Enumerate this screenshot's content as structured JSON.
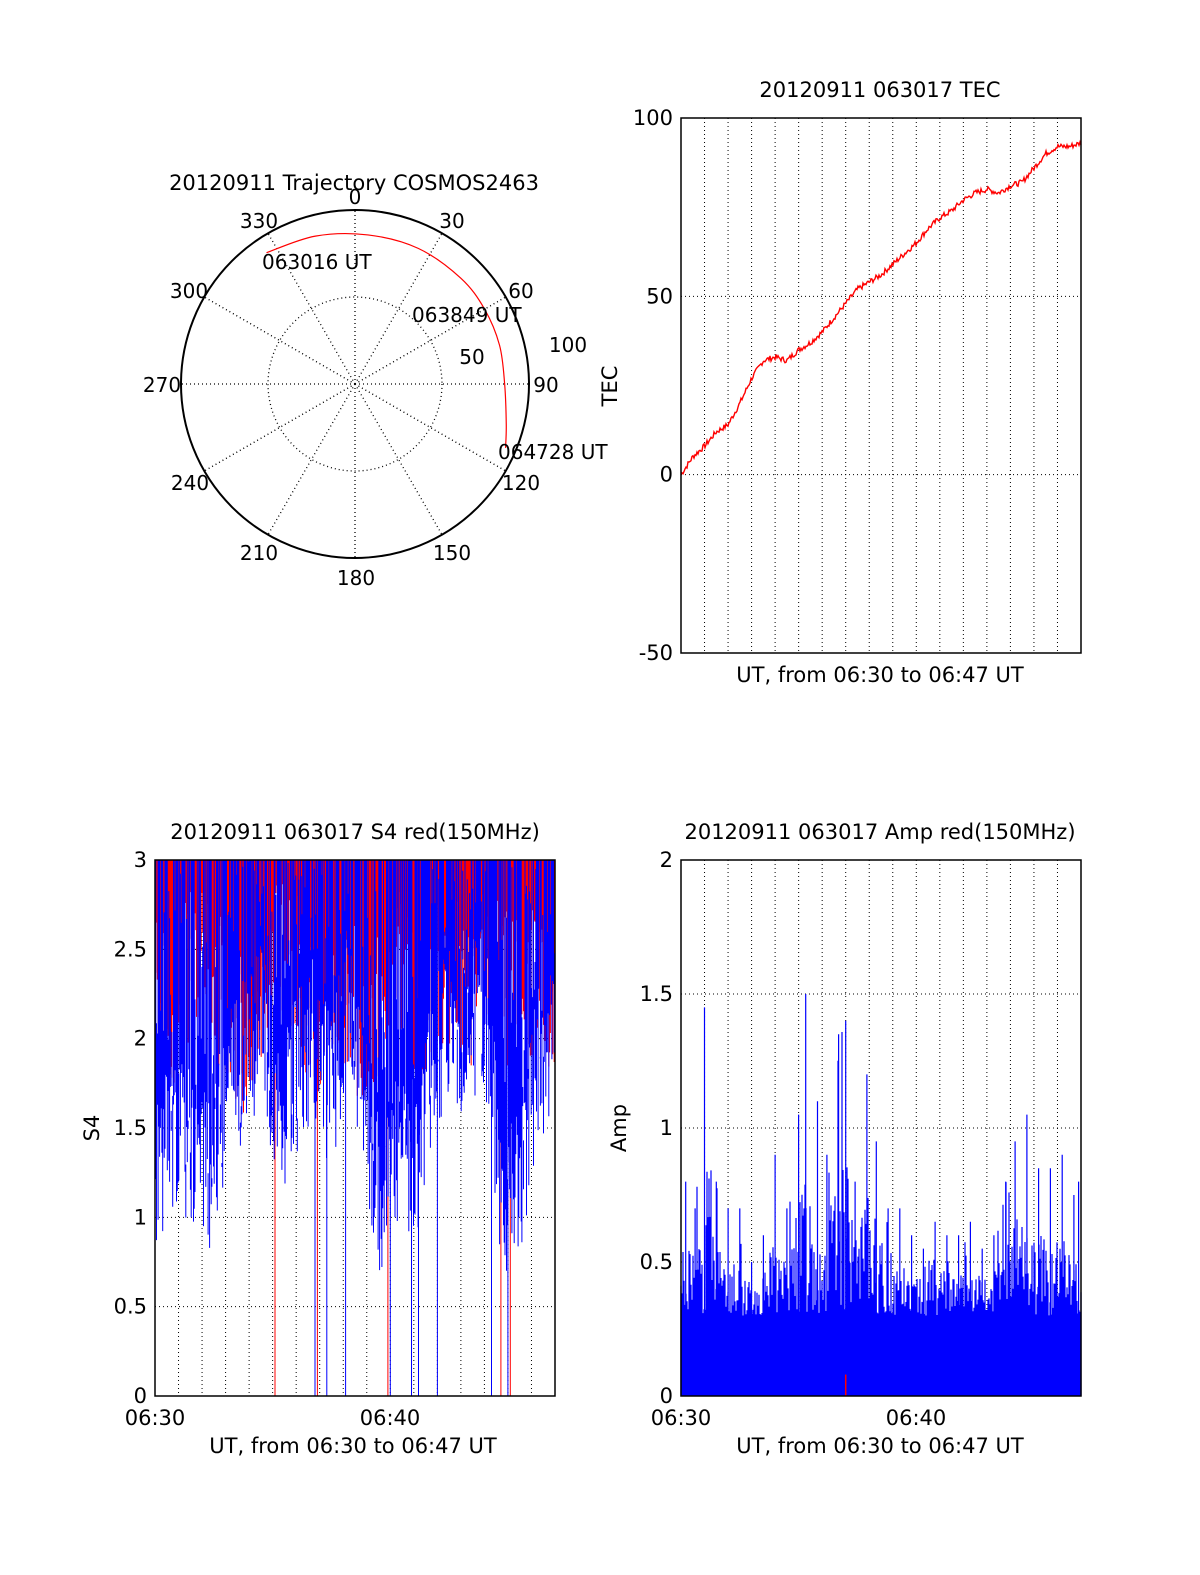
{
  "chart_data": [
    {
      "type": "polar",
      "title": "20120911 Trajectory COSMOS2463",
      "angle_labels": [
        "0",
        "30",
        "60",
        "90",
        "120",
        "150",
        "180",
        "210",
        "240",
        "270",
        "300",
        "330"
      ],
      "radial_labels": [
        "50",
        "100"
      ],
      "rlim": [
        0,
        100
      ],
      "trajectory": {
        "color": "#ff0000",
        "points": [
          {
            "azimuth": 326,
            "zenith_angle": 91
          },
          {
            "azimuth": 345,
            "zenith_angle": 88
          },
          {
            "azimuth": 5,
            "zenith_angle": 86
          },
          {
            "azimuth": 25,
            "zenith_angle": 86
          },
          {
            "azimuth": 45,
            "zenith_angle": 86
          },
          {
            "azimuth": 60,
            "zenith_angle": 86
          },
          {
            "azimuth": 75,
            "zenith_angle": 86
          },
          {
            "azimuth": 90,
            "zenith_angle": 86
          },
          {
            "azimuth": 105,
            "zenith_angle": 90
          },
          {
            "azimuth": 113,
            "zenith_angle": 94
          }
        ],
        "point_labels": [
          "063016 UT",
          "063849 UT",
          "064728 UT"
        ]
      }
    },
    {
      "type": "line",
      "title": "20120911 063017 TEC",
      "xlabel": "UT, from 06:30 to 06:47 UT",
      "ylabel": "TEC",
      "ylim": [
        -50,
        100
      ],
      "yticks": [
        "-50",
        "0",
        "50",
        "100"
      ],
      "xlim_minutes": [
        0,
        17
      ],
      "grid": true,
      "series": [
        {
          "color": "#ff0000",
          "x_minutes": [
            0,
            0.5,
            1,
            1.5,
            2,
            2.5,
            3,
            3.5,
            4,
            4.5,
            5,
            5.5,
            6,
            6.5,
            7,
            7.5,
            8,
            8.5,
            9,
            9.5,
            10,
            10.5,
            11,
            11.5,
            12,
            12.5,
            13,
            13.5,
            14,
            14.5,
            15,
            15.5,
            16,
            16.5,
            17
          ],
          "values": [
            0,
            5,
            8,
            12,
            14,
            20,
            27,
            32,
            33,
            32,
            35,
            37,
            40,
            44,
            48,
            52,
            54,
            56,
            59,
            62,
            65,
            69,
            72,
            74,
            77,
            79,
            80,
            79,
            81,
            82,
            86,
            90,
            92,
            92,
            93
          ]
        }
      ]
    },
    {
      "type": "bar",
      "title": "20120911 063017 S4 red(150MHz)",
      "xlabel": "UT, from 06:30 to 06:47 UT",
      "ylabel": "S4",
      "ylim": [
        0,
        3
      ],
      "yticks": [
        "0",
        "0.5",
        "1",
        "1.5",
        "2",
        "2.5",
        "3"
      ],
      "xticks": [
        "06:30",
        "06:40"
      ],
      "xlim_minutes": [
        0,
        17
      ],
      "grid": true,
      "series": [
        {
          "name": "red",
          "color": "#ff0000",
          "x_minutes": [
            0.2,
            0.9,
            1.6,
            2.3,
            3.1,
            3.8,
            4.6,
            5.3,
            6.0,
            6.7,
            7.5,
            8.2,
            8.9,
            9.6,
            10.4,
            11.1,
            11.8,
            12.6,
            13.3,
            14.0,
            14.7,
            15.5,
            16.2,
            16.9
          ],
          "values": [
            2.3,
            2.1,
            2.5,
            2.4,
            2.2,
            2.0,
            2.3,
            2.6,
            2.4,
            2.1,
            2.2,
            2.3,
            2.0,
            2.2,
            2.4,
            2.1,
            2.3,
            2.4,
            2.2,
            2.5,
            2.3,
            2.2,
            2.4,
            2.2
          ],
          "dropouts_minutes": [
            5.1,
            6.9,
            9.9,
            14.7,
            15.1
          ]
        },
        {
          "name": "blue",
          "color": "#0000ff",
          "x_minutes": [
            0.2,
            0.9,
            1.6,
            2.3,
            3.1,
            3.8,
            4.6,
            5.3,
            6.0,
            6.7,
            7.5,
            8.2,
            8.9,
            9.6,
            10.4,
            11.1,
            11.8,
            12.6,
            13.3,
            14.0,
            14.7,
            15.5,
            16.2,
            16.9
          ],
          "values": [
            1.3,
            1.5,
            1.4,
            1.2,
            1.7,
            1.9,
            2.1,
            1.5,
            1.8,
            2.0,
            1.7,
            2.2,
            1.6,
            1.1,
            1.4,
            1.3,
            1.9,
            2.1,
            2.0,
            2.2,
            1.1,
            1.2,
            1.8,
            2.0
          ],
          "dropouts_minutes": [
            6.8,
            7.3,
            8.1,
            10.0,
            10.9,
            11.2,
            12.0,
            14.3,
            15.0
          ]
        }
      ]
    },
    {
      "type": "bar",
      "title": "20120911 063017 Amp red(150MHz)",
      "xlabel": "UT, from 06:30 to 06:47 UT",
      "ylabel": "Amp",
      "ylim": [
        0,
        2
      ],
      "yticks": [
        "0",
        "0.5",
        "1",
        "1.5",
        "2"
      ],
      "xticks": [
        "06:30",
        "06:40"
      ],
      "xlim_minutes": [
        0,
        17
      ],
      "grid": true,
      "series": [
        {
          "name": "blue",
          "color": "#0000ff",
          "x_minutes": [
            0.2,
            0.6,
            1.0,
            1.5,
            2.0,
            2.5,
            3.0,
            3.5,
            4.0,
            4.5,
            5.0,
            5.3,
            5.8,
            6.2,
            6.7,
            7.0,
            7.4,
            7.9,
            8.3,
            8.8,
            9.3,
            9.8,
            10.3,
            10.8,
            11.3,
            11.8,
            12.3,
            12.8,
            13.3,
            13.8,
            14.2,
            14.7,
            15.2,
            15.7,
            16.2,
            16.7,
            16.9
          ],
          "values": [
            0.8,
            0.7,
            1.45,
            0.8,
            0.7,
            0.7,
            0.5,
            0.6,
            0.9,
            0.7,
            1.05,
            1.5,
            1.1,
            0.9,
            1.35,
            1.4,
            0.8,
            1.2,
            0.95,
            0.7,
            0.7,
            0.6,
            0.55,
            0.65,
            0.6,
            0.6,
            0.65,
            0.55,
            0.6,
            0.8,
            0.95,
            1.05,
            0.85,
            0.85,
            0.9,
            0.75,
            0.8
          ],
          "floor": 0.3
        },
        {
          "name": "red",
          "color": "#ff0000",
          "x_minutes": [
            7.0
          ],
          "values": [
            0.08
          ]
        }
      ]
    }
  ]
}
